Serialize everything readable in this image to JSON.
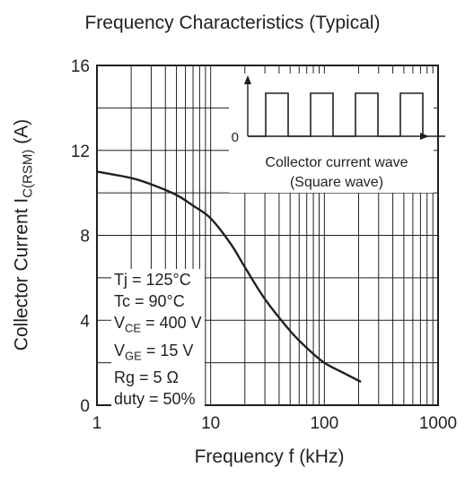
{
  "chart_data": {
    "type": "line",
    "title": "Frequency Characteristics (Typical)",
    "xlabel": "Frequency   f (kHz)",
    "ylabel": {
      "main": "Collector Current   I",
      "sub": "C(RSM)",
      "unit": "  (A)"
    },
    "x_scale": "log",
    "xlim": [
      1,
      1000
    ],
    "ylim": [
      0,
      16
    ],
    "x_ticks": [
      "1",
      "10",
      "100",
      "1000"
    ],
    "y_ticks": [
      "0",
      "4",
      "8",
      "12",
      "16"
    ],
    "grid": true,
    "series": [
      {
        "x": [
          1,
          2,
          3,
          5,
          7,
          10,
          15,
          20,
          30,
          50,
          70,
          100,
          150,
          210
        ],
        "y": [
          11.0,
          10.7,
          10.4,
          9.9,
          9.4,
          8.8,
          7.6,
          6.5,
          5.0,
          3.5,
          2.7,
          2.0,
          1.5,
          1.1
        ]
      }
    ],
    "annotations": {
      "conditions": [
        {
          "main": "Tj = 125°C",
          "sub": "",
          "rest": ""
        },
        {
          "main": "Tc = 90°C",
          "sub": "",
          "rest": ""
        },
        {
          "main": "V",
          "sub": "CE",
          "rest": " = 400 V"
        },
        {
          "main": "V",
          "sub": "GE",
          "rest": " = 15 V"
        },
        {
          "main": "Rg = 5 Ω",
          "sub": "",
          "rest": ""
        },
        {
          "main": "duty = 50%",
          "sub": "",
          "rest": ""
        }
      ],
      "inset": {
        "zero_label": "0",
        "line1": "Collector current wave",
        "line2": "(Square wave)"
      }
    }
  }
}
